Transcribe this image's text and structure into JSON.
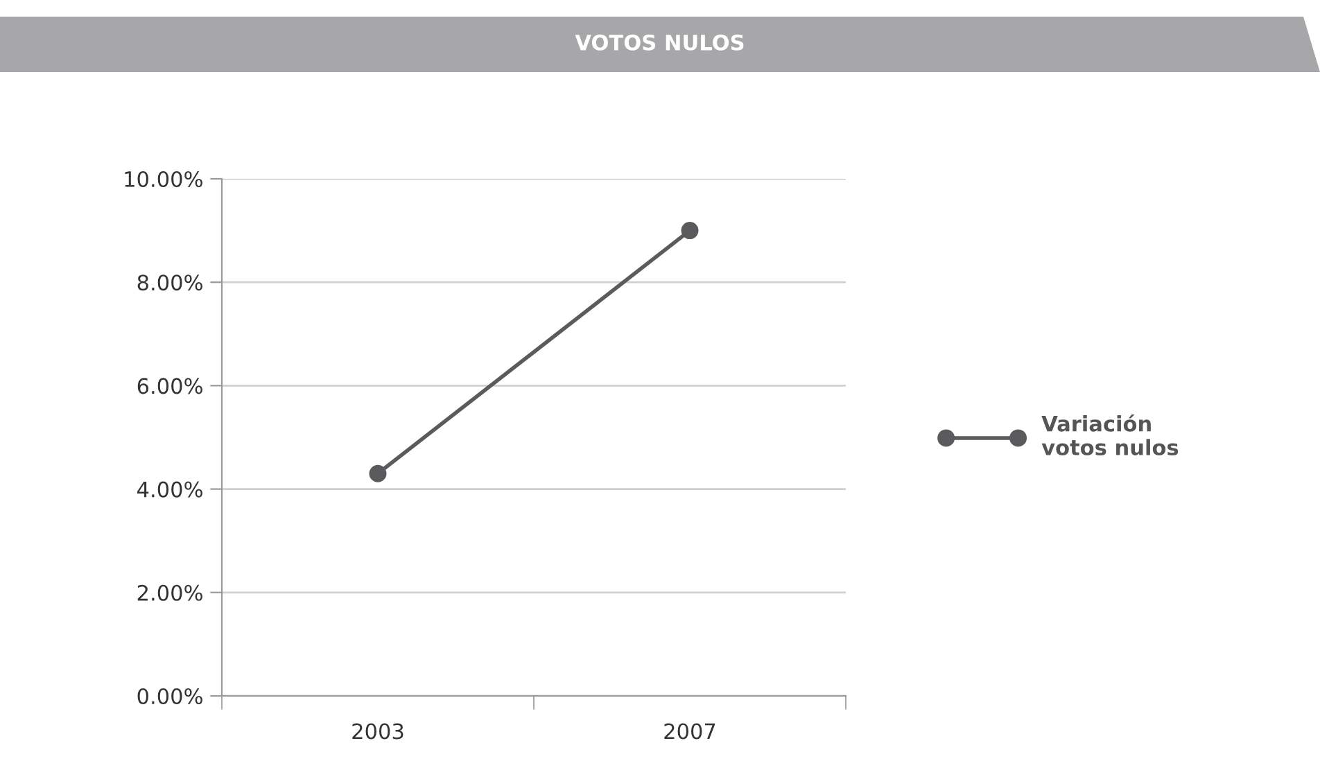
{
  "chart_data": {
    "type": "line",
    "title": "VOTOS NULOS",
    "categories": [
      "2003",
      "2007"
    ],
    "series": [
      {
        "name": "Variación\nvotos nulos",
        "color": "#5b5b5d",
        "values": [
          4.3,
          9.0
        ]
      }
    ],
    "ylim": [
      0,
      10
    ],
    "yticks": [
      {
        "value": 0,
        "label": "0.00%"
      },
      {
        "value": 2,
        "label": "2.00%"
      },
      {
        "value": 4,
        "label": "4.00%"
      },
      {
        "value": 6,
        "label": "6.00%"
      },
      {
        "value": 8,
        "label": "8.00%"
      },
      {
        "value": 10,
        "label": "10.00%"
      }
    ],
    "grid": "y",
    "legend": "right",
    "marker": "circle",
    "line_style": "solid"
  }
}
